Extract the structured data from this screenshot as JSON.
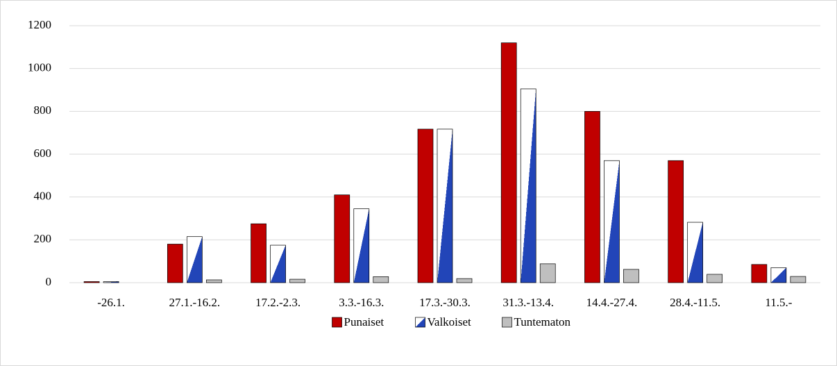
{
  "chart_data": {
    "type": "bar",
    "categories": [
      "-26.1.",
      "27.1.-16.2.",
      "17.2.-2.3.",
      "3.3.-16.3.",
      "17.3.-30.3.",
      "31.3.-13.4.",
      "14.4.-27.4.",
      "28.4.-11.5.",
      "11.5.-"
    ],
    "series": [
      {
        "name": "Punaiset",
        "color": "#c00000",
        "values": [
          5,
          180,
          275,
          410,
          717,
          1120,
          800,
          570,
          85
        ]
      },
      {
        "name": "Valkoiset",
        "color": "#2245b8",
        "values": [
          5,
          215,
          175,
          345,
          717,
          905,
          570,
          282,
          70
        ]
      },
      {
        "name": "Tuntematon",
        "color": "#bfbfbf",
        "values": [
          0,
          13,
          16,
          28,
          19,
          88,
          62,
          39,
          29
        ]
      }
    ],
    "ylim": [
      0,
      1200
    ],
    "yticks": [
      0,
      200,
      400,
      600,
      800,
      1000,
      1200
    ],
    "grid": true,
    "legend": "bottom"
  }
}
